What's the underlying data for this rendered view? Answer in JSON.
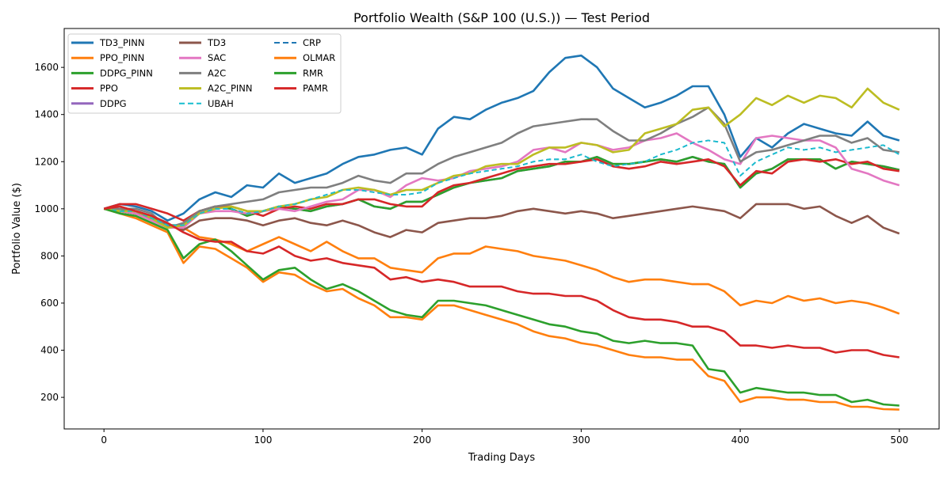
{
  "chart_data": {
    "type": "line",
    "title": "Portfolio Wealth (S&P 100 (U.S.)) — Test Period",
    "xlabel": "Trading Days",
    "ylabel": "Portfolio Value ($)",
    "xlim": [
      -25,
      525
    ],
    "ylim": [
      66,
      1765
    ],
    "xticks": [
      0,
      100,
      200,
      300,
      400,
      500
    ],
    "yticks": [
      200,
      400,
      600,
      800,
      1000,
      1200,
      1400,
      1600
    ],
    "grid": false,
    "legend_position": "top-left",
    "x": [
      0,
      10,
      20,
      30,
      40,
      50,
      60,
      70,
      80,
      90,
      100,
      110,
      120,
      130,
      140,
      150,
      160,
      170,
      180,
      190,
      200,
      210,
      220,
      230,
      240,
      250,
      260,
      270,
      280,
      290,
      300,
      310,
      320,
      330,
      340,
      350,
      360,
      370,
      380,
      390,
      400,
      410,
      420,
      430,
      440,
      450,
      460,
      470,
      480,
      490,
      500
    ],
    "series": [
      {
        "name": "TD3_PINN",
        "color": "#1f77b4",
        "dash": false,
        "values": [
          1000,
          1020,
          1010,
          990,
          950,
          980,
          1040,
          1070,
          1050,
          1100,
          1090,
          1150,
          1110,
          1130,
          1150,
          1190,
          1220,
          1230,
          1250,
          1260,
          1230,
          1340,
          1390,
          1380,
          1420,
          1450,
          1470,
          1500,
          1580,
          1640,
          1650,
          1600,
          1510,
          1470,
          1430,
          1450,
          1480,
          1520,
          1520,
          1400,
          1220,
          1300,
          1260,
          1320,
          1360,
          1340,
          1320,
          1310,
          1370,
          1310,
          1290
        ]
      },
      {
        "name": "PPO_PINN",
        "color": "#ff7f0e",
        "dash": false,
        "values": [
          1000,
          990,
          980,
          960,
          930,
          920,
          880,
          870,
          850,
          820,
          850,
          880,
          850,
          820,
          860,
          820,
          790,
          790,
          750,
          740,
          730,
          790,
          810,
          810,
          840,
          830,
          820,
          800,
          790,
          780,
          760,
          740,
          710,
          690,
          700,
          700,
          690,
          680,
          680,
          650,
          590,
          610,
          600,
          630,
          610,
          620,
          600,
          610,
          600,
          580,
          555
        ]
      },
      {
        "name": "DDPG_PINN",
        "color": "#2ca02c",
        "dash": false,
        "values": [
          1000,
          990,
          980,
          960,
          930,
          930,
          990,
          1010,
          1000,
          970,
          990,
          1010,
          1000,
          990,
          1010,
          1020,
          1040,
          1010,
          1000,
          1030,
          1030,
          1060,
          1090,
          1110,
          1120,
          1130,
          1160,
          1170,
          1180,
          1200,
          1200,
          1220,
          1190,
          1190,
          1200,
          1210,
          1200,
          1220,
          1200,
          1190,
          1090,
          1150,
          1170,
          1210,
          1210,
          1210,
          1170,
          1200,
          1190,
          1180,
          1165
        ]
      },
      {
        "name": "PPO",
        "color": "#d62728",
        "dash": false,
        "values": [
          1000,
          1020,
          1020,
          1000,
          980,
          950,
          990,
          1010,
          1010,
          990,
          970,
          1000,
          1010,
          1000,
          1020,
          1020,
          1040,
          1040,
          1020,
          1010,
          1010,
          1070,
          1100,
          1110,
          1130,
          1150,
          1170,
          1180,
          1190,
          1190,
          1200,
          1210,
          1180,
          1170,
          1180,
          1200,
          1190,
          1200,
          1210,
          1180,
          1100,
          1160,
          1150,
          1200,
          1210,
          1200,
          1210,
          1190,
          1200,
          1170,
          1160
        ]
      },
      {
        "name": "DDPG",
        "color": "#9467bd",
        "dash": false,
        "values": [
          1000,
          990,
          980,
          960,
          930,
          930,
          990,
          1010,
          1000,
          970,
          990,
          1010,
          1000,
          990,
          1010,
          1020,
          1040,
          1010,
          1000,
          1030,
          1030,
          1060,
          1090,
          1110,
          1120,
          1130,
          1160,
          1170,
          1180,
          1200,
          1200,
          1220,
          1190,
          1190,
          1200,
          1210,
          1200,
          1220,
          1200,
          1190,
          1090,
          1150,
          1170,
          1210,
          1210,
          1210,
          1170,
          1200,
          1190,
          1180,
          1165
        ]
      },
      {
        "name": "TD3",
        "color": "#8c564b",
        "dash": false,
        "values": [
          1000,
          1000,
          990,
          970,
          930,
          910,
          950,
          960,
          960,
          950,
          930,
          950,
          960,
          940,
          930,
          950,
          930,
          900,
          880,
          910,
          900,
          940,
          950,
          960,
          960,
          970,
          990,
          1000,
          990,
          980,
          990,
          980,
          960,
          970,
          980,
          990,
          1000,
          1010,
          1000,
          990,
          960,
          1020,
          1020,
          1020,
          1000,
          1010,
          970,
          940,
          970,
          920,
          895
        ]
      },
      {
        "name": "SAC",
        "color": "#e377c2",
        "dash": false,
        "values": [
          1000,
          990,
          980,
          950,
          920,
          920,
          980,
          990,
          990,
          980,
          990,
          1000,
          990,
          1010,
          1030,
          1040,
          1080,
          1080,
          1050,
          1100,
          1130,
          1120,
          1130,
          1160,
          1170,
          1180,
          1200,
          1250,
          1260,
          1240,
          1280,
          1270,
          1250,
          1260,
          1290,
          1300,
          1320,
          1280,
          1250,
          1210,
          1190,
          1300,
          1310,
          1300,
          1290,
          1290,
          1260,
          1170,
          1150,
          1120,
          1100
        ]
      },
      {
        "name": "A2C",
        "color": "#7f7f7f",
        "dash": false,
        "values": [
          1000,
          1000,
          1000,
          980,
          920,
          940,
          990,
          1010,
          1020,
          1030,
          1040,
          1070,
          1080,
          1090,
          1090,
          1110,
          1140,
          1120,
          1110,
          1150,
          1150,
          1190,
          1220,
          1240,
          1260,
          1280,
          1320,
          1350,
          1360,
          1370,
          1380,
          1380,
          1330,
          1290,
          1290,
          1320,
          1360,
          1390,
          1430,
          1360,
          1200,
          1240,
          1250,
          1270,
          1290,
          1310,
          1310,
          1280,
          1300,
          1250,
          1240
        ]
      },
      {
        "name": "A2C_PINN",
        "color": "#bcbd22",
        "dash": false,
        "values": [
          1000,
          990,
          990,
          960,
          920,
          930,
          980,
          1000,
          1010,
          990,
          990,
          1010,
          1020,
          1040,
          1050,
          1080,
          1090,
          1080,
          1060,
          1080,
          1080,
          1110,
          1140,
          1150,
          1180,
          1190,
          1190,
          1230,
          1260,
          1260,
          1280,
          1270,
          1240,
          1250,
          1320,
          1340,
          1360,
          1420,
          1430,
          1350,
          1400,
          1470,
          1440,
          1480,
          1450,
          1480,
          1470,
          1430,
          1510,
          1450,
          1420
        ]
      },
      {
        "name": "UBAH",
        "color": "#17becf",
        "dash": true,
        "values": [
          1000,
          990,
          990,
          960,
          930,
          930,
          980,
          1000,
          1000,
          980,
          990,
          1010,
          1020,
          1040,
          1060,
          1080,
          1080,
          1070,
          1060,
          1060,
          1070,
          1110,
          1130,
          1150,
          1160,
          1170,
          1180,
          1200,
          1210,
          1210,
          1230,
          1200,
          1180,
          1190,
          1200,
          1230,
          1250,
          1280,
          1290,
          1280,
          1140,
          1200,
          1230,
          1260,
          1250,
          1260,
          1240,
          1250,
          1260,
          1270,
          1230
        ]
      },
      {
        "name": "CRP",
        "color": "#1f77b4",
        "dash": true,
        "values": [
          1000,
          990,
          990,
          960,
          930,
          930,
          980,
          1000,
          1000,
          980,
          990,
          1010,
          1020,
          1040,
          1060,
          1080,
          1080,
          1070,
          1060,
          1060,
          1070,
          1110,
          1130,
          1150,
          1160,
          1170,
          1180,
          1200,
          1210,
          1210,
          1230,
          1200,
          1180,
          1190,
          1200,
          1230,
          1250,
          1280,
          1290,
          1280,
          1140,
          1200,
          1230,
          1260,
          1250,
          1260,
          1240,
          1250,
          1260,
          1270,
          1230
        ]
      },
      {
        "name": "OLMAR",
        "color": "#ff7f0e",
        "dash": false,
        "values": [
          1000,
          980,
          960,
          930,
          900,
          770,
          840,
          830,
          790,
          750,
          690,
          730,
          720,
          680,
          650,
          660,
          620,
          590,
          540,
          540,
          530,
          590,
          590,
          570,
          550,
          530,
          510,
          480,
          460,
          450,
          430,
          420,
          400,
          380,
          370,
          370,
          360,
          360,
          290,
          270,
          180,
          200,
          200,
          190,
          190,
          180,
          180,
          160,
          160,
          150,
          148
        ]
      },
      {
        "name": "RMR",
        "color": "#2ca02c",
        "dash": false,
        "values": [
          1000,
          980,
          970,
          940,
          910,
          790,
          850,
          870,
          820,
          760,
          700,
          740,
          750,
          700,
          660,
          680,
          650,
          610,
          570,
          550,
          540,
          610,
          610,
          600,
          590,
          570,
          550,
          530,
          510,
          500,
          480,
          470,
          440,
          430,
          440,
          430,
          430,
          420,
          320,
          310,
          220,
          240,
          230,
          220,
          220,
          210,
          210,
          180,
          190,
          170,
          165
        ]
      },
      {
        "name": "PAMR",
        "color": "#d62728",
        "dash": false,
        "values": [
          1000,
          1010,
          990,
          970,
          940,
          900,
          870,
          860,
          860,
          820,
          810,
          840,
          800,
          780,
          790,
          770,
          760,
          750,
          700,
          710,
          690,
          700,
          690,
          670,
          670,
          670,
          650,
          640,
          640,
          630,
          630,
          610,
          570,
          540,
          530,
          530,
          520,
          500,
          500,
          480,
          420,
          420,
          410,
          420,
          410,
          410,
          390,
          400,
          400,
          380,
          370
        ]
      }
    ]
  }
}
